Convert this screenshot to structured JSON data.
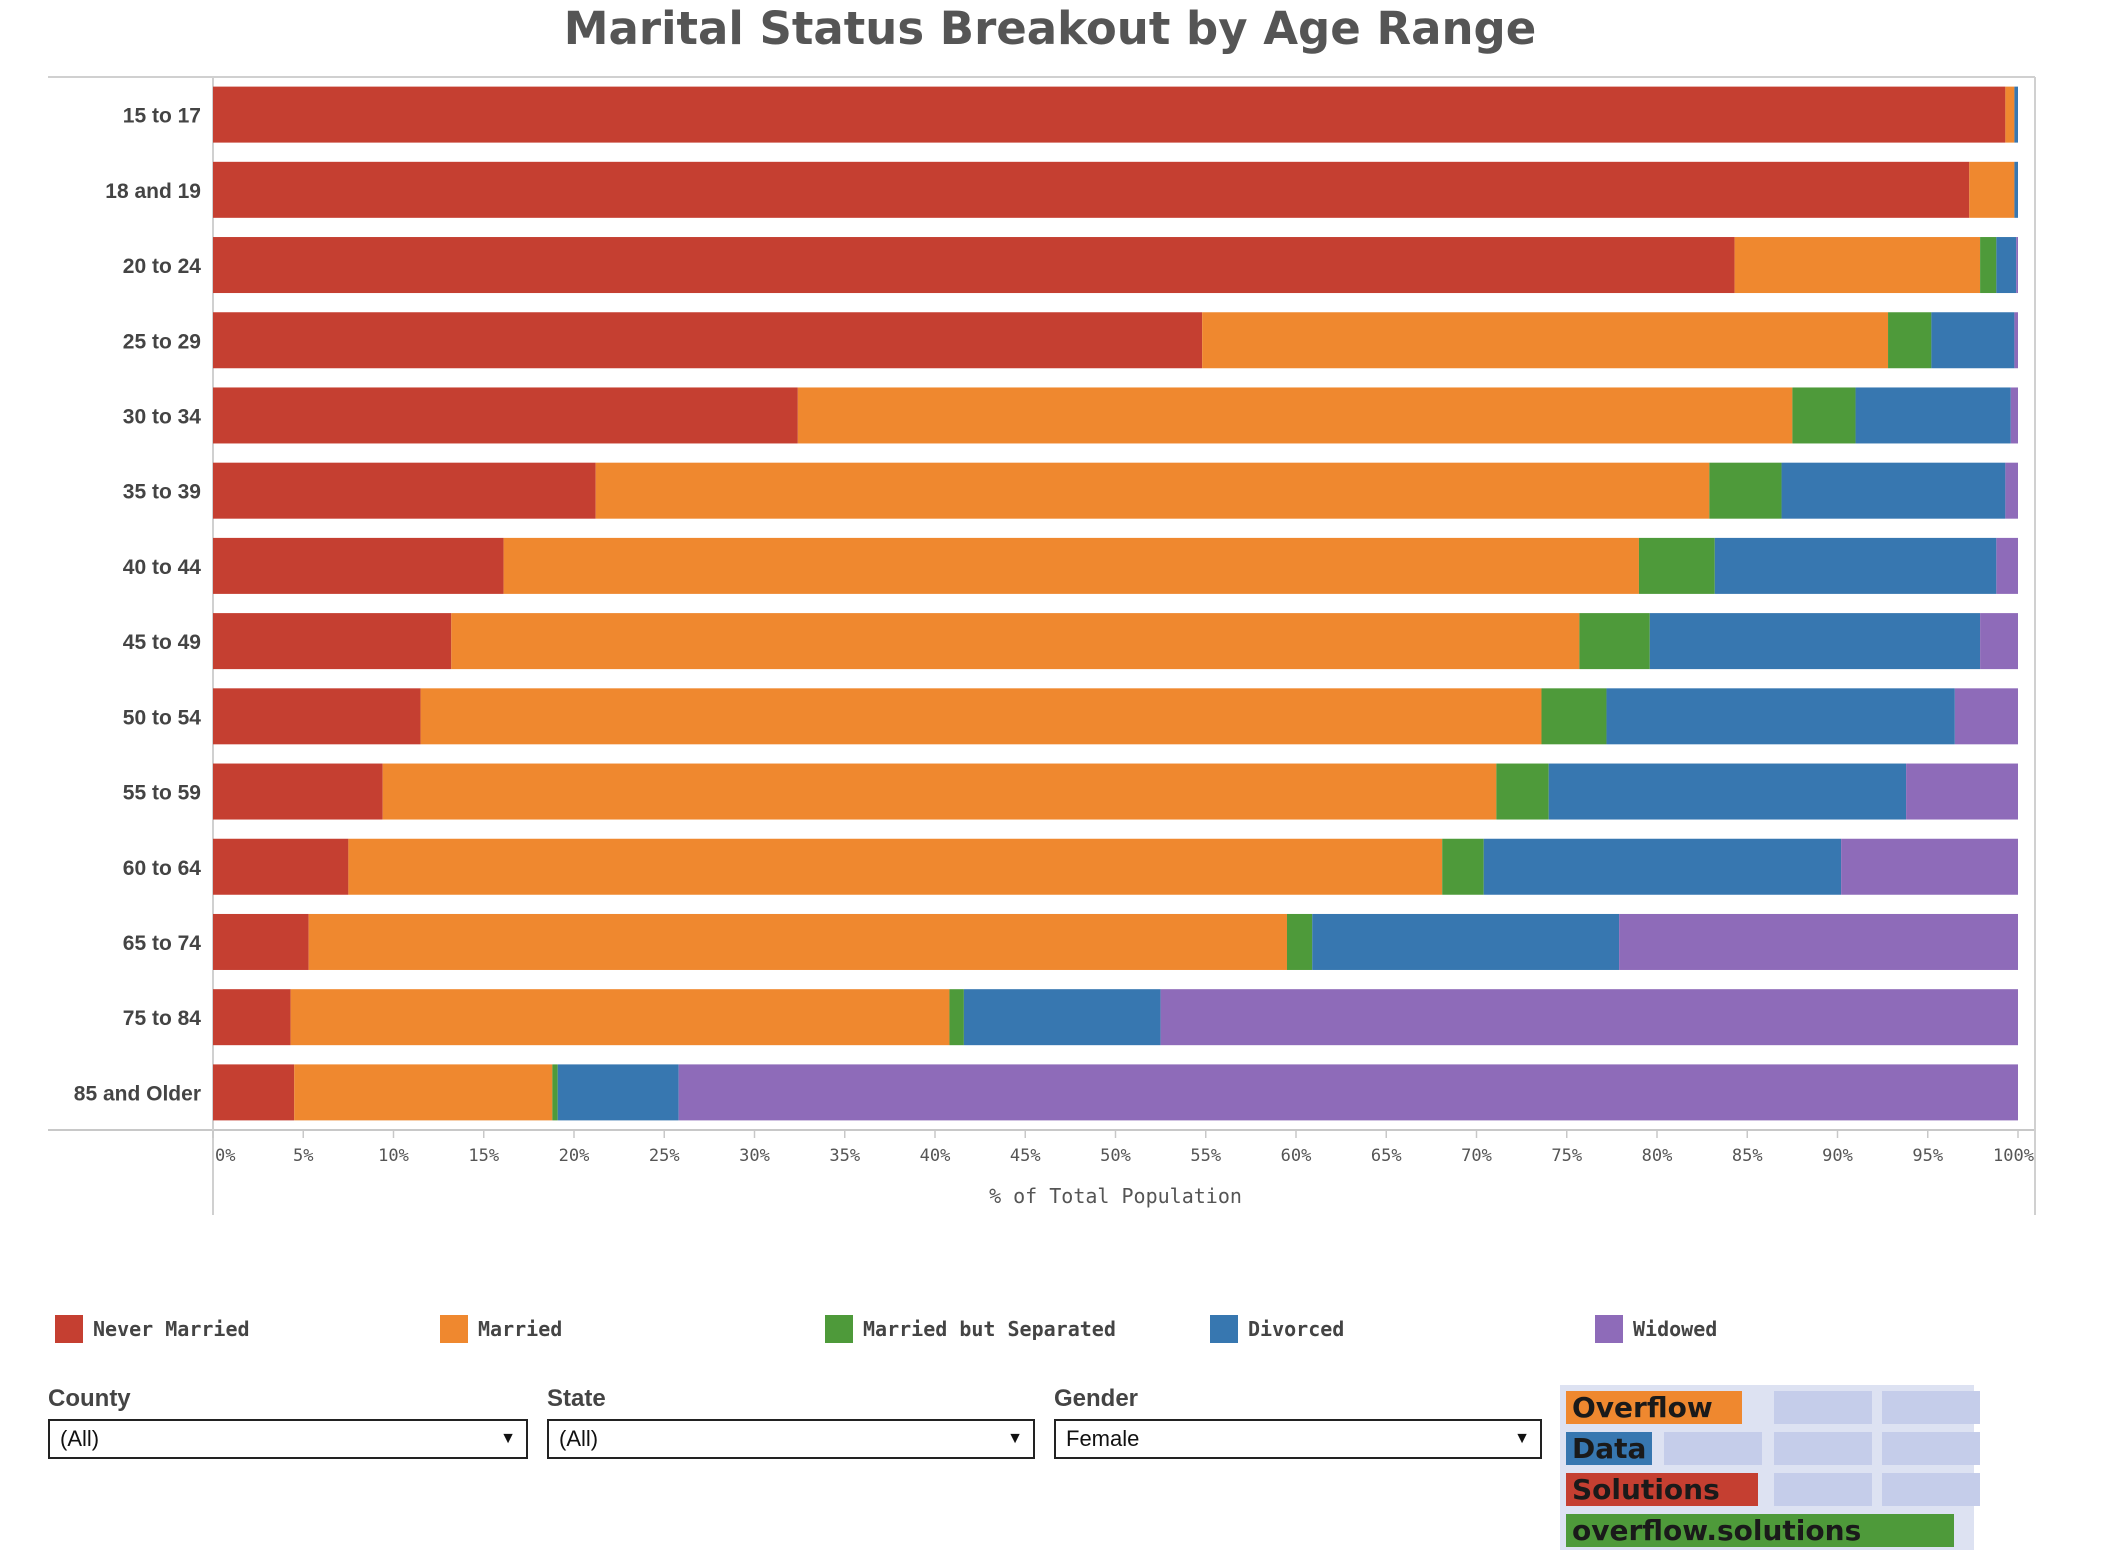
{
  "chart_data": {
    "type": "bar",
    "orientation": "horizontal",
    "stacked": "percent",
    "title": "Marital Status Breakout by Age Range",
    "xlabel": "% of Total Population",
    "xlim": [
      0,
      100
    ],
    "xticks": [
      "0%",
      "5%",
      "10%",
      "15%",
      "20%",
      "25%",
      "30%",
      "35%",
      "40%",
      "45%",
      "50%",
      "55%",
      "60%",
      "65%",
      "70%",
      "75%",
      "80%",
      "85%",
      "90%",
      "95%",
      "100%"
    ],
    "categories": [
      "15 to 17",
      "18 and 19",
      "20 to 24",
      "25 to 29",
      "30 to 34",
      "35 to 39",
      "40 to 44",
      "45 to 49",
      "50 to 54",
      "55 to 59",
      "60 to 64",
      "65 to 74",
      "75 to 84",
      "85 and Older"
    ],
    "series": [
      {
        "name": "Never Married",
        "color": "#c53f31",
        "values": [
          99.3,
          97.3,
          84.3,
          54.8,
          32.4,
          21.2,
          16.1,
          13.2,
          11.5,
          9.4,
          7.5,
          5.3,
          4.3,
          4.5
        ]
      },
      {
        "name": "Married",
        "color": "#ef882f",
        "values": [
          0.5,
          2.5,
          13.6,
          38.0,
          55.1,
          61.7,
          62.9,
          62.5,
          62.1,
          61.7,
          60.6,
          54.2,
          36.5,
          14.3
        ]
      },
      {
        "name": "Married but Separated",
        "color": "#4e9a3a",
        "values": [
          0.0,
          0.0,
          0.9,
          2.4,
          3.5,
          4.0,
          4.2,
          3.9,
          3.6,
          2.9,
          2.3,
          1.4,
          0.8,
          0.3
        ]
      },
      {
        "name": "Divorced",
        "color": "#3777b0",
        "values": [
          0.2,
          0.2,
          1.1,
          4.6,
          8.6,
          12.4,
          15.6,
          18.3,
          19.3,
          19.8,
          19.8,
          17.0,
          10.9,
          6.7
        ]
      },
      {
        "name": "Widowed",
        "color": "#8e6bb9",
        "values": [
          0.0,
          0.0,
          0.1,
          0.2,
          0.4,
          0.7,
          1.2,
          2.1,
          3.5,
          6.2,
          9.8,
          22.1,
          47.5,
          74.2
        ]
      }
    ],
    "legend": "bottom"
  },
  "filters": {
    "county": {
      "label": "County",
      "value": "(All)"
    },
    "state": {
      "label": "State",
      "value": "(All)"
    },
    "gender": {
      "label": "Gender",
      "value": "Female"
    }
  },
  "logo": {
    "lines": [
      "Overflow",
      "Data",
      "Solutions",
      "overflow.solutions"
    ],
    "colors": [
      "#ef882f",
      "#3777b0",
      "#c53f31",
      "#4e9a3a"
    ]
  }
}
